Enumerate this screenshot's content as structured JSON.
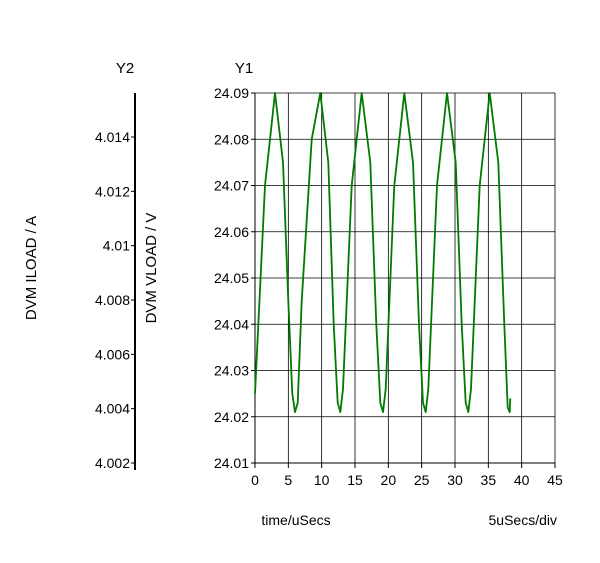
{
  "chart_data": {
    "type": "line",
    "y1_axis_title": "Y1",
    "y2_axis_title": "Y2",
    "xlabel": "time/uSecs",
    "x_scale_note": "5uSecs/div",
    "y1_label": "DVM VLOAD / V",
    "y2_label": "DVM ILOAD / A",
    "xlim": [
      0,
      45
    ],
    "x_ticks": [
      0,
      5,
      10,
      15,
      20,
      25,
      30,
      35,
      40,
      45
    ],
    "y1lim": [
      24.01,
      24.09
    ],
    "y1_ticks": [
      24.01,
      24.02,
      24.03,
      24.04,
      24.05,
      24.06,
      24.07,
      24.08,
      24.09
    ],
    "y2_ticks": [
      "4.002",
      "4.004",
      "4.006",
      "4.008",
      "4.01",
      "4.012",
      "4.014"
    ],
    "grid": true,
    "series": [
      {
        "color": "#007a00",
        "axis": "y1",
        "x": [
          0,
          1.5,
          3.0,
          4.2,
          5.0,
          5.6,
          6.0,
          6.4,
          7.0,
          8.5,
          9.8,
          11.0,
          11.8,
          12.4,
          12.8,
          13.2,
          14.5,
          16.0,
          17.3,
          18.2,
          18.8,
          19.2,
          19.6,
          20.9,
          22.4,
          23.7,
          24.6,
          25.2,
          25.6,
          26.0,
          27.3,
          28.8,
          30.1,
          31.0,
          31.6,
          32.0,
          32.4,
          33.7,
          35.2,
          36.5,
          37.4,
          37.9,
          38.2,
          38.3
        ],
        "y": [
          24.025,
          24.07,
          24.09,
          24.075,
          24.045,
          24.025,
          24.021,
          24.023,
          24.045,
          24.08,
          24.09,
          24.075,
          24.04,
          24.023,
          24.021,
          24.026,
          24.07,
          24.09,
          24.075,
          24.04,
          24.023,
          24.021,
          24.026,
          24.07,
          24.09,
          24.075,
          24.04,
          24.023,
          24.021,
          24.026,
          24.07,
          24.09,
          24.075,
          24.04,
          24.023,
          24.021,
          24.026,
          24.07,
          24.09,
          24.075,
          24.04,
          24.022,
          24.021,
          24.024
        ]
      }
    ]
  },
  "colors": {
    "axis": "#000000",
    "grid": "#000000",
    "trace": "#007a00"
  }
}
